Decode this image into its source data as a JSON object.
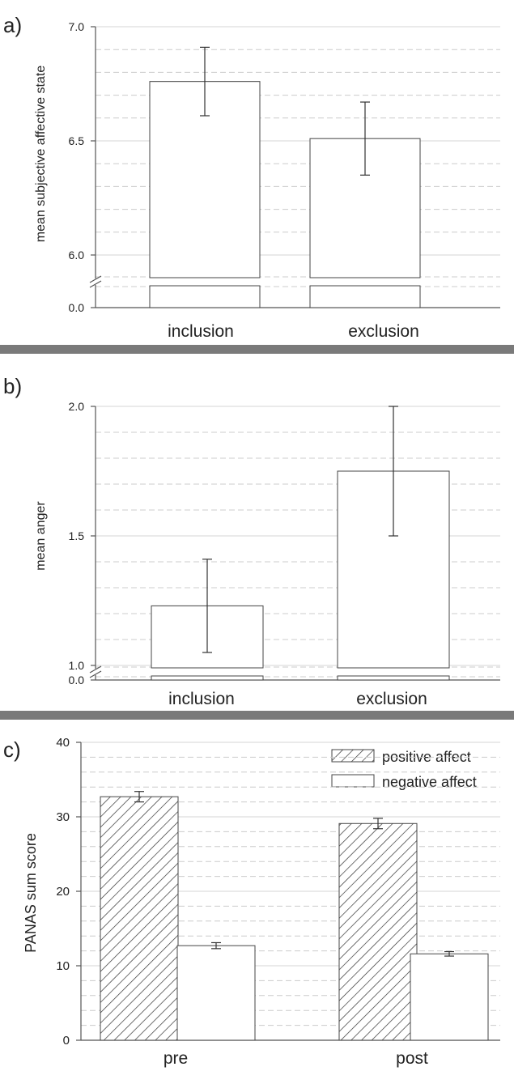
{
  "panels": [
    {
      "letter": "a)",
      "ylabel": "mean subjective affective state",
      "categories": [
        "inclusion",
        "exclusion"
      ]
    },
    {
      "letter": "b)",
      "ylabel": "mean anger",
      "categories": [
        "inclusion",
        "exclusion"
      ]
    },
    {
      "letter": "c)",
      "ylabel": "PANAS sum score",
      "categories": [
        "pre",
        "post"
      ]
    }
  ],
  "chart_data": [
    {
      "type": "bar",
      "panel": "a)",
      "categories": [
        "inclusion",
        "exclusion"
      ],
      "values": [
        6.76,
        6.51
      ],
      "error_low": [
        6.61,
        6.35
      ],
      "error_high": [
        6.91,
        6.67
      ],
      "ylabel": "mean subjective affective state",
      "ylim": [
        6.0,
        7.0
      ],
      "axis_break": true,
      "y_ticks": [
        "7.0",
        "6.5",
        "6.0",
        "0.0"
      ],
      "grid": true
    },
    {
      "type": "bar",
      "panel": "b)",
      "categories": [
        "inclusion",
        "exclusion"
      ],
      "values": [
        1.23,
        1.75
      ],
      "error_low": [
        1.05,
        1.5
      ],
      "error_high": [
        1.41,
        2.0
      ],
      "ylabel": "mean anger",
      "ylim": [
        1.0,
        2.0
      ],
      "axis_break": true,
      "y_ticks": [
        "2.0",
        "1.5",
        "1.0",
        "0.0"
      ],
      "grid": true
    },
    {
      "type": "bar",
      "panel": "c)",
      "categories": [
        "pre",
        "post"
      ],
      "series": [
        {
          "name": "positive affect",
          "pattern": "hatched",
          "values": [
            32.7,
            29.1
          ],
          "error_low": [
            32.0,
            28.4
          ],
          "error_high": [
            33.4,
            29.8
          ]
        },
        {
          "name": "negative affect",
          "pattern": "solid-white",
          "values": [
            12.7,
            11.6
          ],
          "error_low": [
            12.3,
            11.3
          ],
          "error_high": [
            13.1,
            11.9
          ]
        }
      ],
      "ylabel": "PANAS sum score",
      "ylim": [
        0,
        40
      ],
      "y_ticks": [
        "40",
        "30",
        "20",
        "10",
        "0"
      ],
      "legend_position": "top-right",
      "grid": true
    }
  ],
  "colors": {
    "axis": "#555555",
    "bar_fill": "#ffffff",
    "bar_stroke": "#444444",
    "hatch": "#333333",
    "grid_solid": "#d6d6d6",
    "grid_dashed": "#cccccc",
    "separator": "#7a7a7a"
  }
}
